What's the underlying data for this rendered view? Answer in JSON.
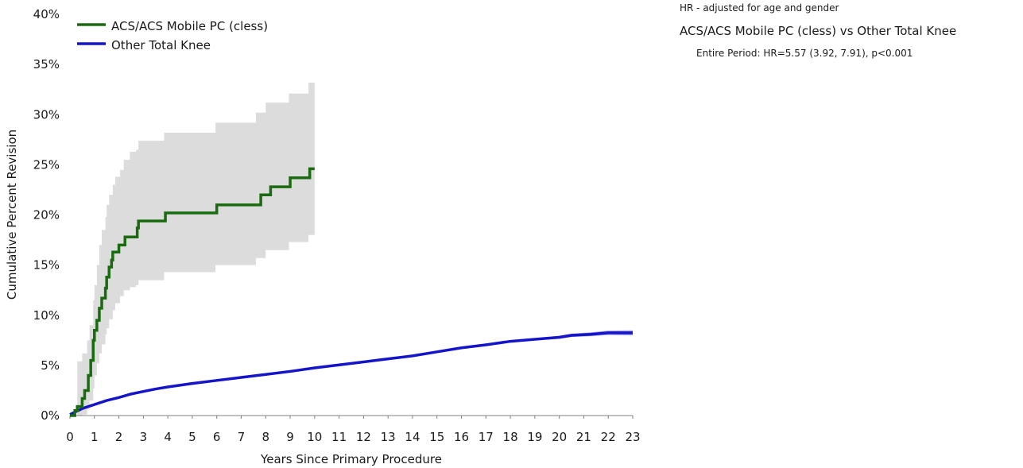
{
  "chart_data": {
    "type": "line",
    "title": "",
    "xlabel": "Years Since Primary Procedure",
    "ylabel": "Cumulative Percent Revision",
    "xlim": [
      0,
      23
    ],
    "ylim": [
      0,
      40
    ],
    "x_ticks": [
      "0",
      "1",
      "2",
      "3",
      "4",
      "5",
      "6",
      "7",
      "8",
      "9",
      "10",
      "11",
      "12",
      "13",
      "14",
      "15",
      "16",
      "17",
      "18",
      "19",
      "20",
      "21",
      "22",
      "23"
    ],
    "y_ticks": [
      "0%",
      "5%",
      "10%",
      "15%",
      "20%",
      "25%",
      "30%",
      "35%",
      "40%"
    ],
    "legend_position": "top-left",
    "grid": false,
    "series": [
      {
        "name": "ACS/ACS Mobile PC (cless)",
        "color": "#1a6b0f",
        "ci_color": "#dcdcdc",
        "step": true,
        "points": [
          [
            0,
            0
          ],
          [
            0.2,
            0.5
          ],
          [
            0.3,
            0.9
          ],
          [
            0.5,
            1.7
          ],
          [
            0.6,
            2.5
          ],
          [
            0.75,
            4.0
          ],
          [
            0.85,
            5.5
          ],
          [
            0.95,
            7.5
          ],
          [
            1.0,
            8.5
          ],
          [
            1.1,
            9.5
          ],
          [
            1.2,
            10.7
          ],
          [
            1.3,
            11.7
          ],
          [
            1.45,
            12.7
          ],
          [
            1.5,
            13.8
          ],
          [
            1.6,
            14.8
          ],
          [
            1.7,
            15.5
          ],
          [
            1.75,
            16.3
          ],
          [
            2.0,
            17.0
          ],
          [
            2.25,
            17.8
          ],
          [
            2.75,
            18.7
          ],
          [
            2.8,
            19.4
          ],
          [
            3.9,
            20.2
          ],
          [
            6.0,
            21.0
          ],
          [
            7.8,
            22.0
          ],
          [
            8.2,
            22.8
          ],
          [
            9.0,
            23.7
          ],
          [
            9.8,
            24.6
          ],
          [
            10.0,
            24.6
          ]
        ],
        "ci_upper": [
          [
            0,
            0
          ],
          [
            0.3,
            5.4
          ],
          [
            0.5,
            6.2
          ],
          [
            0.7,
            7.5
          ],
          [
            0.8,
            9.0
          ],
          [
            0.95,
            11.5
          ],
          [
            1.0,
            13.0
          ],
          [
            1.1,
            15.0
          ],
          [
            1.2,
            17.0
          ],
          [
            1.3,
            18.5
          ],
          [
            1.45,
            19.8
          ],
          [
            1.5,
            21.0
          ],
          [
            1.6,
            22.0
          ],
          [
            1.75,
            23.0
          ],
          [
            1.85,
            23.8
          ],
          [
            2.05,
            24.5
          ],
          [
            2.2,
            25.5
          ],
          [
            2.45,
            26.3
          ],
          [
            2.7,
            26.5
          ],
          [
            2.8,
            27.4
          ],
          [
            3.85,
            28.2
          ],
          [
            5.95,
            29.2
          ],
          [
            7.6,
            30.2
          ],
          [
            8.0,
            31.2
          ],
          [
            8.95,
            32.1
          ],
          [
            9.75,
            33.2
          ],
          [
            10.0,
            33.2
          ]
        ],
        "ci_lower": [
          [
            0,
            0
          ],
          [
            0.3,
            0
          ],
          [
            0.5,
            0.1
          ],
          [
            0.7,
            0.6
          ],
          [
            0.8,
            1.5
          ],
          [
            0.95,
            2.7
          ],
          [
            1.0,
            4.0
          ],
          [
            1.1,
            5.2
          ],
          [
            1.2,
            6.2
          ],
          [
            1.3,
            7.1
          ],
          [
            1.45,
            8.1
          ],
          [
            1.5,
            8.7
          ],
          [
            1.6,
            9.6
          ],
          [
            1.75,
            10.5
          ],
          [
            1.85,
            11.2
          ],
          [
            2.05,
            11.9
          ],
          [
            2.2,
            12.5
          ],
          [
            2.45,
            12.8
          ],
          [
            2.7,
            13.0
          ],
          [
            2.8,
            13.5
          ],
          [
            3.85,
            14.3
          ],
          [
            5.95,
            15.0
          ],
          [
            7.6,
            15.7
          ],
          [
            8.0,
            16.5
          ],
          [
            8.95,
            17.3
          ],
          [
            9.75,
            18.0
          ],
          [
            10.0,
            18.0
          ]
        ]
      },
      {
        "name": "Other Total Knee",
        "color": "#1414c8",
        "step": false,
        "points": [
          [
            0,
            0.1
          ],
          [
            0.25,
            0.4
          ],
          [
            0.5,
            0.7
          ],
          [
            1,
            1.1
          ],
          [
            1.5,
            1.5
          ],
          [
            2,
            1.8
          ],
          [
            2.5,
            2.15
          ],
          [
            3,
            2.4
          ],
          [
            3.5,
            2.65
          ],
          [
            4,
            2.85
          ],
          [
            5,
            3.2
          ],
          [
            6,
            3.5
          ],
          [
            7,
            3.8
          ],
          [
            8,
            4.1
          ],
          [
            9,
            4.4
          ],
          [
            10,
            4.75
          ],
          [
            11,
            5.05
          ],
          [
            12,
            5.35
          ],
          [
            13,
            5.65
          ],
          [
            14,
            5.95
          ],
          [
            15,
            6.35
          ],
          [
            16,
            6.75
          ],
          [
            17,
            7.05
          ],
          [
            18,
            7.4
          ],
          [
            19,
            7.6
          ],
          [
            20,
            7.8
          ],
          [
            20.5,
            8.0
          ],
          [
            21.3,
            8.1
          ],
          [
            22,
            8.25
          ],
          [
            23,
            8.25
          ]
        ],
        "ci_halfwidth": [
          [
            0,
            0.05
          ],
          [
            18,
            0.08
          ],
          [
            20,
            0.15
          ],
          [
            23,
            0.25
          ]
        ]
      }
    ]
  },
  "notes": {
    "hr_adjusted": "HR - adjusted for age and gender",
    "comparison_title": "ACS/ACS Mobile PC (cless) vs Other Total Knee",
    "period_text": "Entire Period: HR=5.57 (3.92, 7.91), p<0.001"
  }
}
